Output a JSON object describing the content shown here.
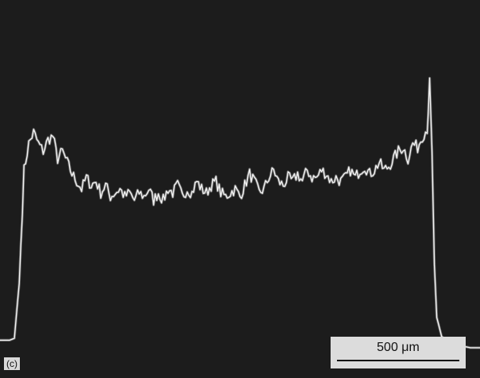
{
  "panel_label": "(c)",
  "scale_bar": {
    "label": "500 μm"
  },
  "colors": {
    "background": "#1c1c1c",
    "trace": "#f2f2f2"
  },
  "chart_data": {
    "type": "line",
    "title": "",
    "xlabel": "",
    "ylabel": "",
    "axes_visible": false,
    "grid": false,
    "xlim": [
      0,
      100
    ],
    "ylim": [
      0,
      100
    ],
    "series": [
      {
        "points": [
          [
            0,
            10
          ],
          [
            2,
            10
          ],
          [
            3,
            10.5
          ],
          [
            4,
            25
          ],
          [
            5,
            55
          ],
          [
            6,
            62
          ],
          [
            7,
            65
          ],
          [
            8,
            62
          ],
          [
            9,
            60
          ],
          [
            10,
            63
          ],
          [
            11,
            64
          ],
          [
            12,
            58
          ],
          [
            13,
            60
          ],
          [
            14,
            57
          ],
          [
            15,
            54
          ],
          [
            16,
            52
          ],
          [
            17,
            50
          ],
          [
            18,
            53
          ],
          [
            19,
            51
          ],
          [
            20,
            52
          ],
          [
            21,
            49
          ],
          [
            22,
            51
          ],
          [
            23,
            48
          ],
          [
            24,
            49
          ],
          [
            25,
            50
          ],
          [
            26,
            48
          ],
          [
            27,
            49
          ],
          [
            28,
            47
          ],
          [
            29,
            49
          ],
          [
            30,
            48
          ],
          [
            31,
            50
          ],
          [
            32,
            47
          ],
          [
            33,
            49
          ],
          [
            34,
            47
          ],
          [
            35,
            50
          ],
          [
            36,
            49
          ],
          [
            37,
            51
          ],
          [
            38,
            48
          ],
          [
            39,
            50
          ],
          [
            40,
            49
          ],
          [
            41,
            52
          ],
          [
            42,
            50
          ],
          [
            43,
            49
          ],
          [
            44,
            51
          ],
          [
            45,
            52
          ],
          [
            46,
            49
          ],
          [
            47,
            48
          ],
          [
            48,
            49
          ],
          [
            49,
            50
          ],
          [
            50,
            48
          ],
          [
            51,
            51
          ],
          [
            52,
            54
          ],
          [
            53,
            52
          ],
          [
            54,
            49
          ],
          [
            55,
            50
          ],
          [
            56,
            53
          ],
          [
            57,
            55
          ],
          [
            58,
            52
          ],
          [
            59,
            51
          ],
          [
            60,
            53
          ],
          [
            61,
            52
          ],
          [
            62,
            54
          ],
          [
            63,
            52
          ],
          [
            64,
            55
          ],
          [
            65,
            53
          ],
          [
            66,
            53
          ],
          [
            67,
            55
          ],
          [
            68,
            54
          ],
          [
            69,
            52
          ],
          [
            70,
            53
          ],
          [
            71,
            52
          ],
          [
            72,
            53
          ],
          [
            73,
            55
          ],
          [
            74,
            53
          ],
          [
            75,
            55
          ],
          [
            76,
            56
          ],
          [
            77,
            54
          ],
          [
            78,
            55
          ],
          [
            79,
            57
          ],
          [
            80,
            55
          ],
          [
            81,
            56
          ],
          [
            82,
            58
          ],
          [
            83,
            60
          ],
          [
            84,
            61
          ],
          [
            85,
            58
          ],
          [
            86,
            62
          ],
          [
            87,
            61
          ],
          [
            88,
            64
          ],
          [
            89,
            66
          ],
          [
            89.5,
            78
          ],
          [
            90,
            60
          ],
          [
            90.5,
            30
          ],
          [
            91,
            16
          ],
          [
            92,
            11
          ],
          [
            94,
            9
          ],
          [
            96,
            8.5
          ],
          [
            98,
            8
          ],
          [
            100,
            8
          ]
        ]
      }
    ]
  }
}
